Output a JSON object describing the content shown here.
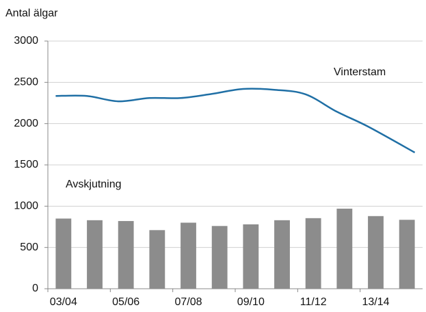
{
  "chart_data": {
    "type": "bar_line",
    "y_label": "Antal älgar",
    "categories": [
      "03/04",
      null,
      "05/06",
      null,
      "07/08",
      null,
      "09/10",
      null,
      "11/12",
      null,
      "13/14",
      null
    ],
    "series": [
      {
        "name": "Avskjutning",
        "type": "bar",
        "color": "#8c8c8c",
        "values": [
          850,
          830,
          820,
          710,
          800,
          760,
          780,
          830,
          855,
          970,
          880,
          835
        ]
      },
      {
        "name": "Vinterstam",
        "type": "line",
        "color": "#1f6fa5",
        "values": [
          2335,
          2335,
          2270,
          2310,
          2310,
          2360,
          2420,
          2410,
          2355,
          2145,
          1965,
          1650
        ]
      }
    ],
    "ylim": [
      0,
      3000
    ],
    "yticks": [
      0,
      500,
      1000,
      1500,
      2000,
      2500,
      3000
    ],
    "grid": true
  }
}
